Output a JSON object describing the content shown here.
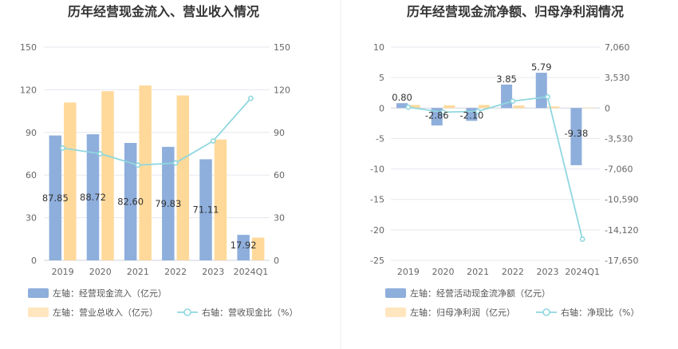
{
  "colors": {
    "bar_primary": "#8eaedc",
    "bar_secondary": "#ffd99a",
    "line": "#8fd7df",
    "grid": "#e6e8ef",
    "text": "#333333",
    "axis_text": "#666666"
  },
  "chart_data": [
    {
      "type": "bar",
      "title": "历年经营现金流入、营业收入情况",
      "categories": [
        "2019",
        "2020",
        "2021",
        "2022",
        "2023",
        "2024Q1"
      ],
      "y_ticks_left": [
        "150",
        "120",
        "90",
        "60",
        "30",
        "0"
      ],
      "y_ticks_right": [
        "150",
        "120",
        "90",
        "60",
        "30",
        "0"
      ],
      "ylim_left": [
        0,
        150
      ],
      "ylim_right": [
        0,
        150
      ],
      "series": [
        {
          "name": "左轴：经营现金流入（亿元）",
          "kind": "bar",
          "axis": "left",
          "values": [
            87.85,
            88.72,
            82.6,
            79.83,
            71.11,
            17.92
          ],
          "labels": [
            "87.85",
            "88.72",
            "82.60",
            "79.83",
            "71.11",
            "17.92"
          ]
        },
        {
          "name": "左轴：营业总收入（亿元）",
          "kind": "bar",
          "axis": "left",
          "values": [
            111,
            119,
            123,
            116,
            85,
            16
          ]
        },
        {
          "name": "右轴：营收现金比（%）",
          "kind": "line",
          "axis": "right",
          "values": [
            79,
            75,
            67,
            68.5,
            84,
            114
          ]
        }
      ]
    },
    {
      "type": "bar",
      "title": "历年经营现金流净额、归母净利润情况",
      "categories": [
        "2019",
        "2020",
        "2021",
        "2022",
        "2023",
        "2024Q1"
      ],
      "y_ticks_left": [
        "10",
        "5",
        "0",
        "-5",
        "-10",
        "-15",
        "-20",
        "-25"
      ],
      "y_ticks_right": [
        "7,060",
        "3,530",
        "0",
        "-3,530",
        "-7,060",
        "-10,590",
        "-14,120",
        "-17,650"
      ],
      "ylim_left": [
        -25,
        10
      ],
      "ylim_right": [
        -17650,
        7060
      ],
      "series": [
        {
          "name": "左轴：经营活动现金流净额（亿元）",
          "kind": "bar",
          "axis": "left",
          "values": [
            0.8,
            -2.86,
            -2.1,
            3.85,
            5.79,
            -9.38
          ],
          "labels": [
            "0.80",
            "-2.86",
            "-2.10",
            "3.85",
            "5.79",
            "-9.38"
          ]
        },
        {
          "name": "左轴：归母净利润（亿元）",
          "kind": "bar",
          "axis": "left",
          "values": [
            0.5,
            0.45,
            0.5,
            0.4,
            0.25,
            0.05
          ]
        },
        {
          "name": "右轴：净现比（%）",
          "kind": "line",
          "axis": "right",
          "values": [
            100,
            -480,
            -380,
            800,
            1300,
            -15200
          ]
        }
      ]
    }
  ]
}
